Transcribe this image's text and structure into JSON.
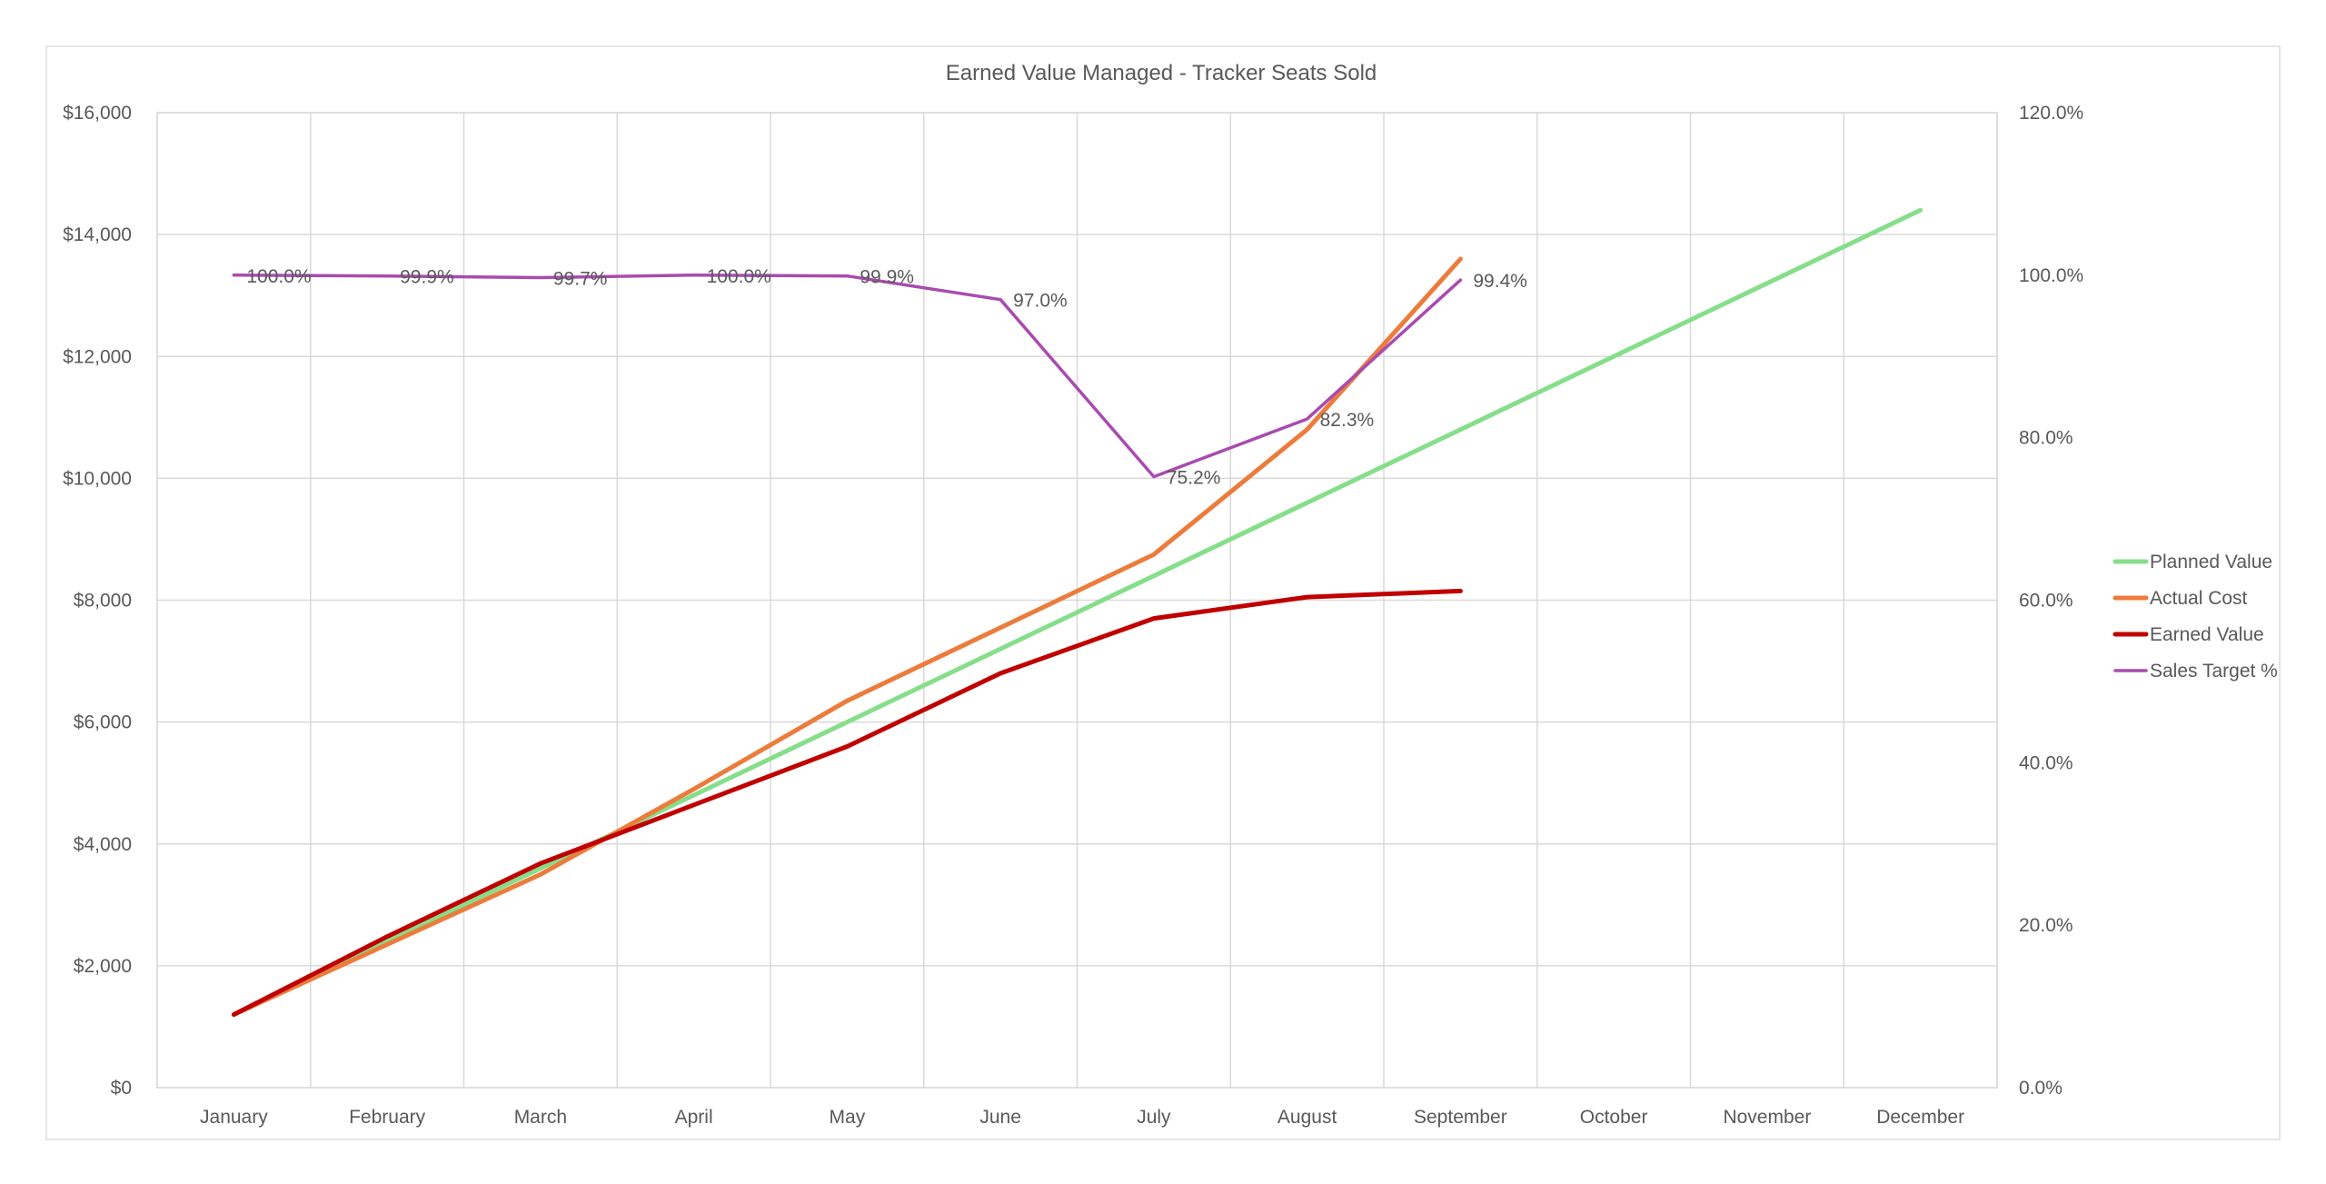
{
  "chart_data": {
    "type": "line",
    "title": "Earned Value Managed - Tracker Seats Sold",
    "categories": [
      "January",
      "February",
      "March",
      "April",
      "May",
      "June",
      "July",
      "August",
      "September",
      "October",
      "November",
      "December"
    ],
    "y_axis": {
      "min": 0,
      "max": 16000,
      "step": 2000,
      "tick_labels": [
        "$0",
        "$2,000",
        "$4,000",
        "$6,000",
        "$8,000",
        "$10,000",
        "$12,000",
        "$14,000",
        "$16,000"
      ]
    },
    "y2_axis": {
      "min": 0,
      "max": 1.2,
      "step": 0.2,
      "tick_labels": [
        "0.0%",
        "20.0%",
        "40.0%",
        "60.0%",
        "80.0%",
        "100.0%",
        "120.0%"
      ]
    },
    "grid": true,
    "legend_position": "right",
    "series": [
      {
        "name": "Planned Value",
        "axis": "primary",
        "color": "#86de8a",
        "values": [
          1200,
          2400,
          3600,
          4800,
          6000,
          7200,
          8400,
          9600,
          10800,
          12000,
          13200,
          14400
        ]
      },
      {
        "name": "Actual Cost",
        "axis": "primary",
        "color": "#ec7c3c",
        "values": [
          1200,
          2350,
          3500,
          4900,
          6350,
          7550,
          8750,
          10800,
          13600,
          null,
          null,
          null
        ]
      },
      {
        "name": "Earned Value",
        "axis": "primary",
        "color": "#c00000",
        "values": [
          1200,
          2480,
          3680,
          4640,
          5600,
          6800,
          7700,
          8050,
          8150,
          null,
          null,
          null
        ]
      },
      {
        "name": "Sales Target %",
        "axis": "secondary",
        "color": "#a84bb0",
        "values": [
          1.0,
          0.999,
          0.997,
          1.0,
          0.999,
          0.97,
          0.752,
          0.823,
          0.994,
          null,
          null,
          null
        ],
        "data_labels": [
          "100.0%",
          "99.9%",
          "99.7%",
          "100.0%",
          "99.9%",
          "97.0%",
          "75.2%",
          "82.3%",
          "99.4%",
          null,
          null,
          null
        ]
      }
    ]
  }
}
